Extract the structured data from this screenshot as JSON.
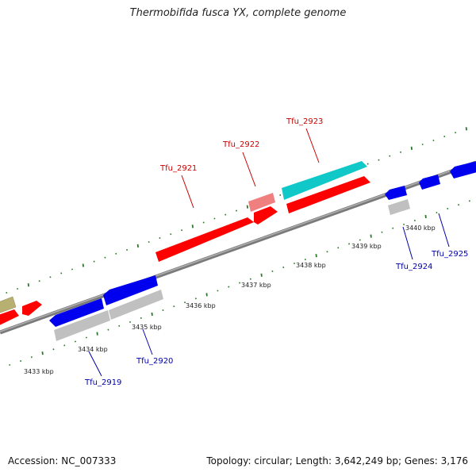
{
  "title": "Thermobifida fusca YX, complete genome",
  "footer": {
    "accession": "Accession: NC_007333",
    "summary": "Topology: circular; Length: 3,642,249 bp; Genes: 3,176"
  },
  "colors": {
    "red": "#ff0000",
    "pink": "#f08080",
    "blue": "#0000ee",
    "cyan": "#10c8c8",
    "gray": "#c0c0c0",
    "olive": "#b8b070",
    "tick": "#2a7a2a",
    "backbone": "#8a8a8a",
    "label_red": "#cc0000",
    "label_blue": "#0000aa"
  },
  "scale_labels": [
    "3433 kbp",
    "3434 kbp",
    "3435 kbp",
    "3436 kbp",
    "3437 kbp",
    "3438 kbp",
    "3439 kbp",
    "3440 kbp"
  ],
  "gene_labels": [
    {
      "name": "Tfu_2919",
      "strand": "minus"
    },
    {
      "name": "Tfu_2920",
      "strand": "minus"
    },
    {
      "name": "Tfu_2921",
      "strand": "plus"
    },
    {
      "name": "Tfu_2922",
      "strand": "plus"
    },
    {
      "name": "Tfu_2923",
      "strand": "plus"
    },
    {
      "name": "Tfu_2924",
      "strand": "minus"
    },
    {
      "name": "Tfu_2925",
      "strand": "minus"
    }
  ]
}
